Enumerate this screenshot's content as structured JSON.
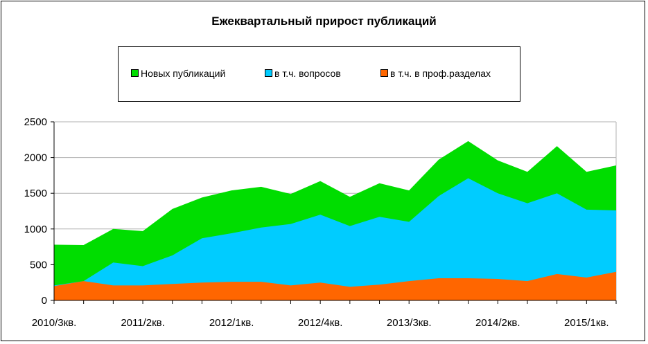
{
  "chart_data": {
    "type": "area",
    "stacked": false,
    "title": "Ежеквартальный прирост публикаций",
    "categories": [
      "2010/3кв.",
      "",
      "",
      "2011/2кв.",
      "",
      "",
      "2012/1кв.",
      "",
      "",
      "2012/4кв.",
      "",
      "",
      "2013/3кв.",
      "",
      "",
      "2014/2кв.",
      "",
      "",
      "2015/1кв.",
      ""
    ],
    "x_tick_labels": [
      "2010/3кв.",
      "2011/2кв.",
      "2012/1кв.",
      "2012/4кв.",
      "2013/3кв.",
      "2014/2кв.",
      "2015/1кв."
    ],
    "series": [
      {
        "name": "Новых публикаций",
        "color": "#00dd00",
        "values": [
          780,
          775,
          1000,
          970,
          1280,
          1440,
          1540,
          1590,
          1490,
          1670,
          1450,
          1640,
          1540,
          1970,
          2230,
          1960,
          1800,
          2160,
          1800,
          1890
        ]
      },
      {
        "name": "в т.ч. вопросов",
        "color": "#00ccff",
        "values": [
          210,
          270,
          530,
          480,
          630,
          870,
          940,
          1020,
          1070,
          1200,
          1040,
          1170,
          1100,
          1460,
          1710,
          1500,
          1360,
          1500,
          1270,
          1260
        ]
      },
      {
        "name": "в т.ч. в проф.разделах",
        "color": "#ff6600",
        "values": [
          200,
          270,
          210,
          210,
          230,
          250,
          260,
          260,
          210,
          250,
          190,
          220,
          270,
          310,
          310,
          300,
          270,
          370,
          320,
          400
        ]
      }
    ],
    "ylim": [
      0,
      2500
    ],
    "y_ticks": [
      "0",
      "500",
      "1000",
      "1500",
      "2000",
      "2500"
    ],
    "grid": true,
    "legend_position": "top"
  }
}
